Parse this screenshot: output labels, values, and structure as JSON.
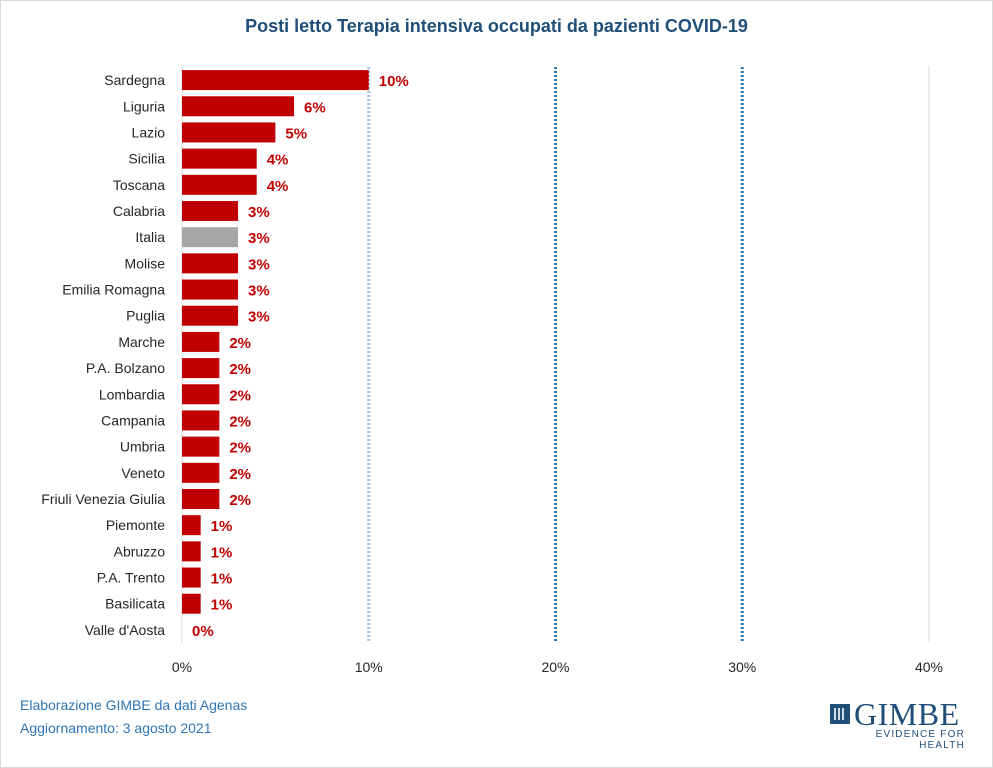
{
  "colors": {
    "bar": "#c00000",
    "bar_highlight": "#a6a6a6",
    "label": "#c00000",
    "title": "#1f4e79",
    "footer": "#2e75b6",
    "dotted_line": "#2e75b6",
    "dotted_line_light": "#9dc3e6",
    "axis_line": "#d9d9d9"
  },
  "footer": {
    "line1": "Elaborazione GIMBE da dati Agenas",
    "line2": "Aggiornamento: 3 agosto 2021"
  },
  "logo": {
    "name": "GIMBE",
    "tagline": "EVIDENCE FOR HEALTH"
  },
  "chart_data": {
    "type": "bar",
    "orientation": "horizontal",
    "title": "Posti letto Terapia intensiva occupati da pazienti COVID-19",
    "xlabel": "",
    "ylabel": "",
    "xlim": [
      0,
      40
    ],
    "x_ticks": [
      "0%",
      "10%",
      "20%",
      "30%",
      "40%"
    ],
    "reference_lines": [
      10,
      20,
      30
    ],
    "highlighted_category": "Italia",
    "categories": [
      "Sardegna",
      "Liguria",
      "Lazio",
      "Sicilia",
      "Toscana",
      "Calabria",
      "Italia",
      "Molise",
      "Emilia Romagna",
      "Puglia",
      "Marche",
      "P.A. Bolzano",
      "Lombardia",
      "Campania",
      "Umbria",
      "Veneto",
      "Friuli Venezia Giulia",
      "Piemonte",
      "Abruzzo",
      "P.A. Trento",
      "Basilicata",
      "Valle d'Aosta"
    ],
    "values": [
      10,
      6,
      5,
      4,
      4,
      3,
      3,
      3,
      3,
      3,
      2,
      2,
      2,
      2,
      2,
      2,
      2,
      1,
      1,
      1,
      1,
      0
    ],
    "labels": [
      "10%",
      "6%",
      "5%",
      "4%",
      "4%",
      "3%",
      "3%",
      "3%",
      "3%",
      "3%",
      "2%",
      "2%",
      "2%",
      "2%",
      "2%",
      "2%",
      "2%",
      "1%",
      "1%",
      "1%",
      "1%",
      "0%"
    ]
  }
}
